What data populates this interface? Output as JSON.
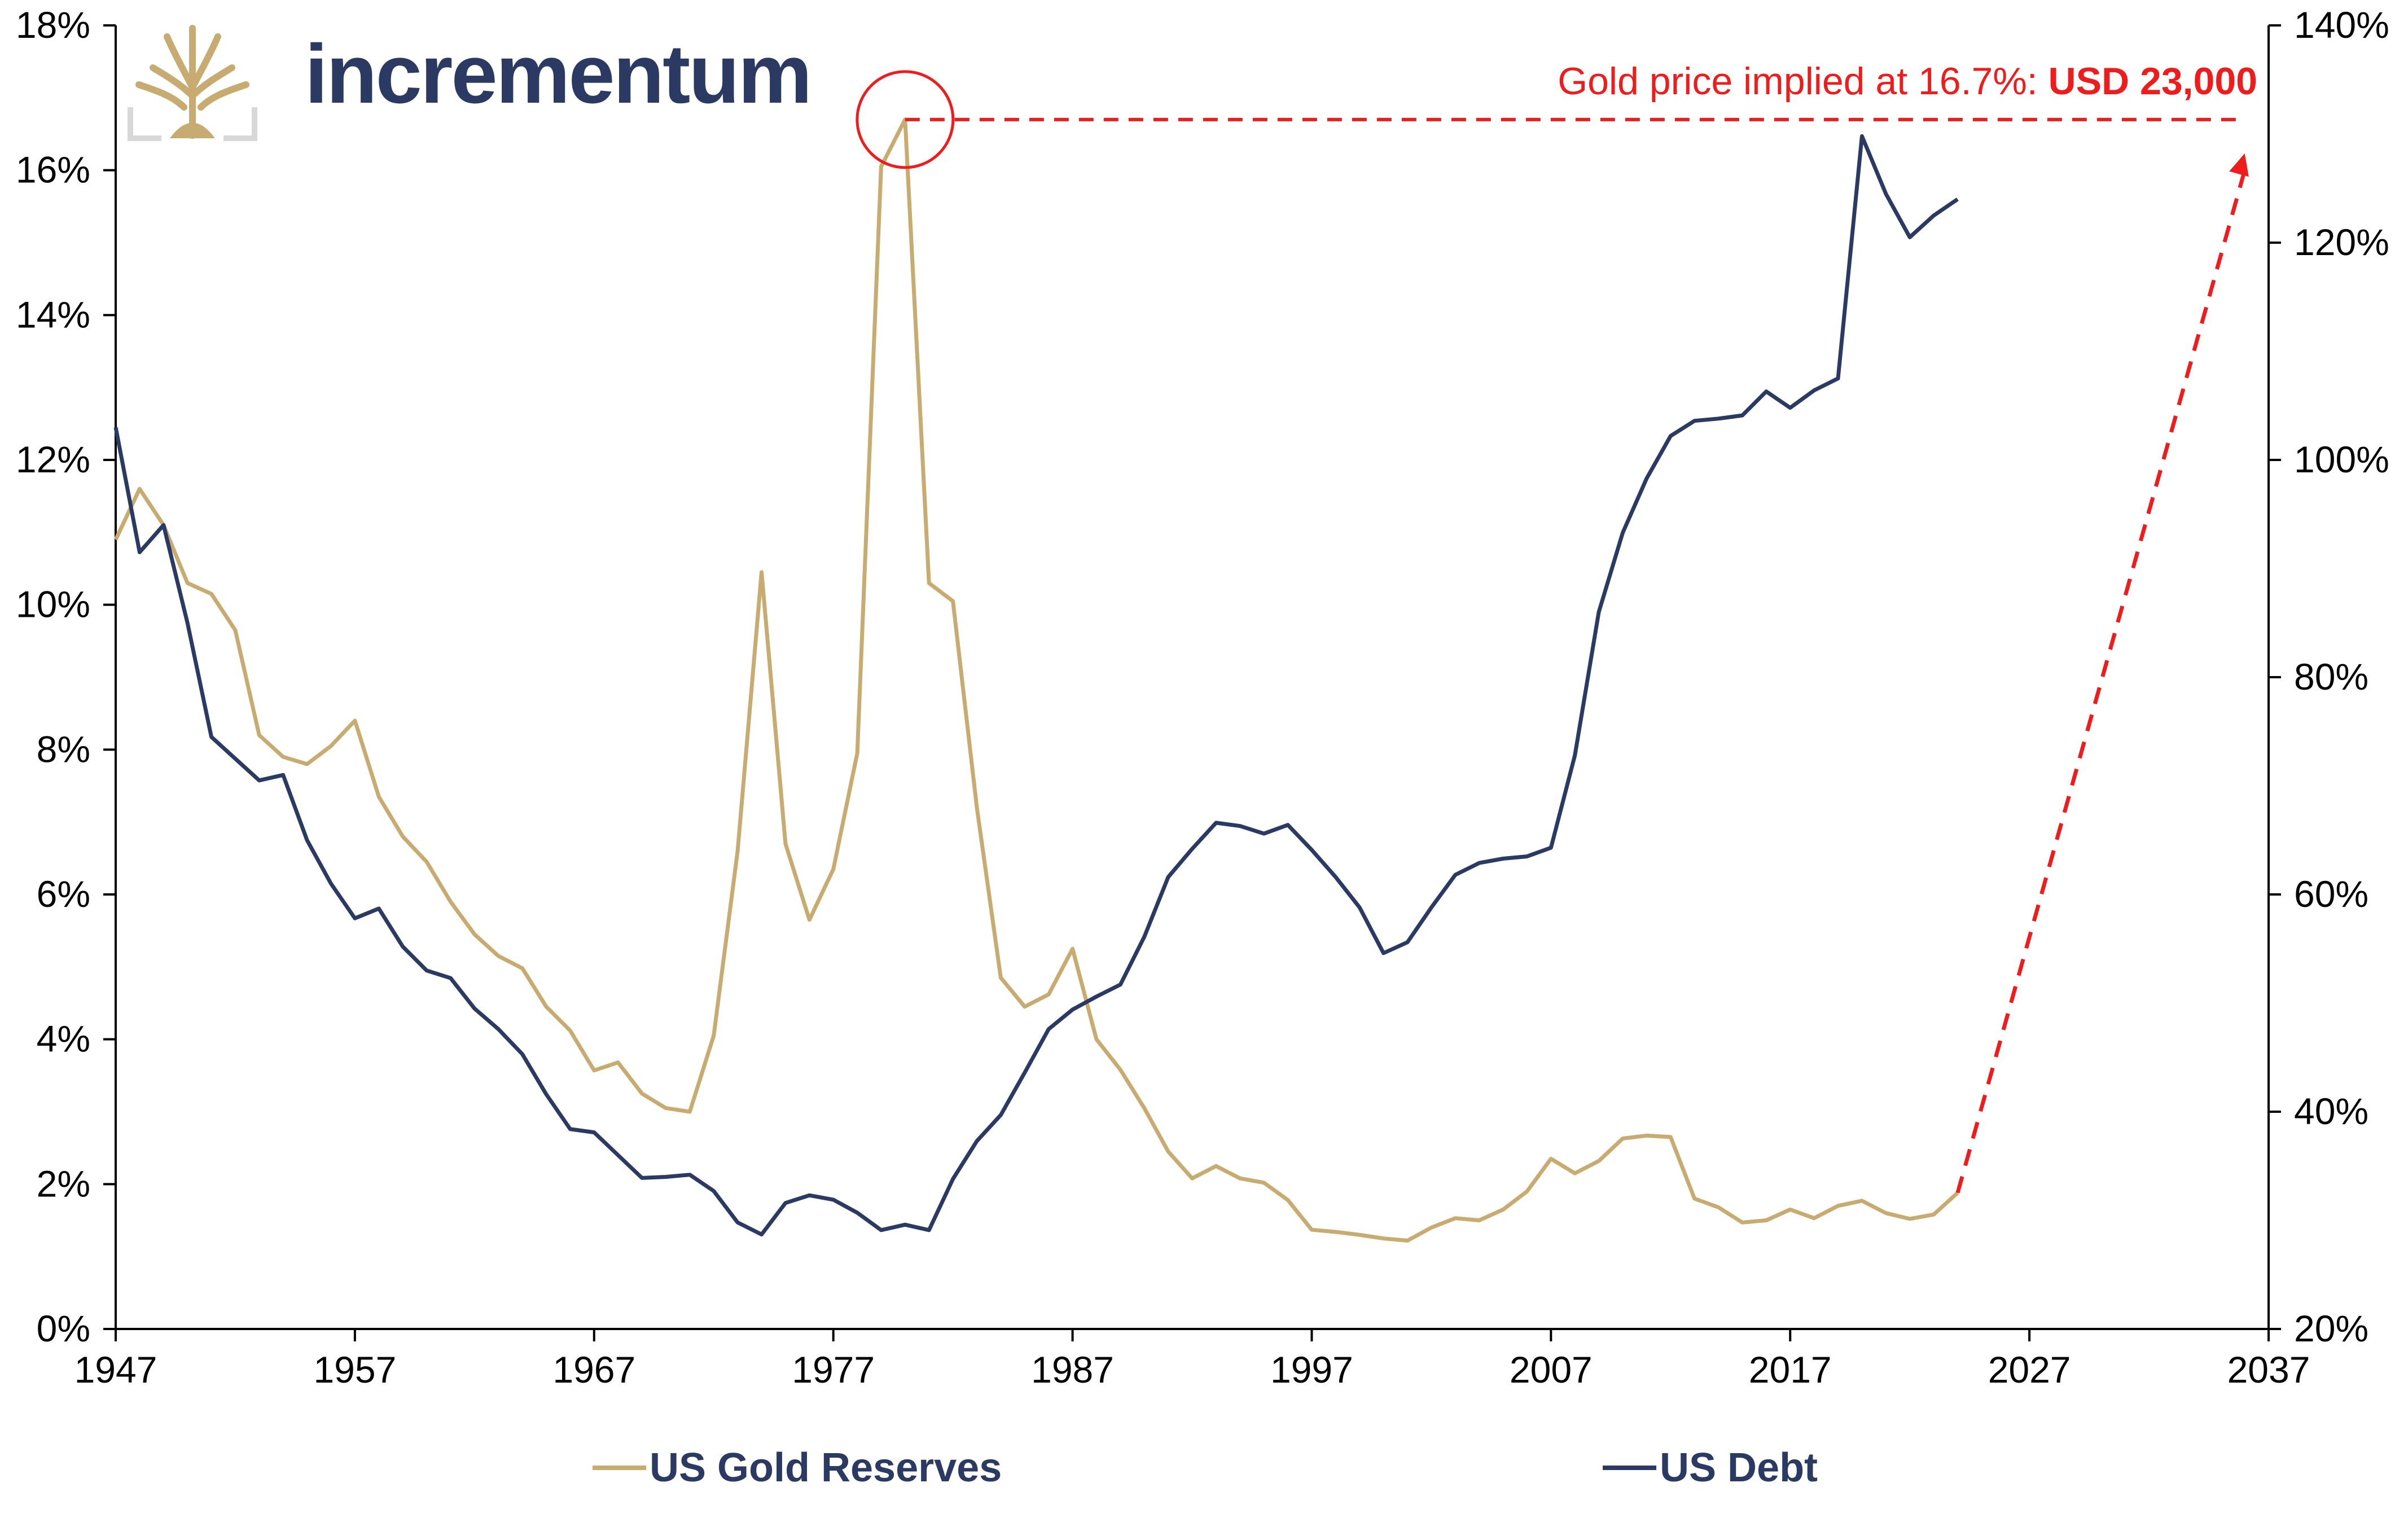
{
  "brand": {
    "name": "incrementum"
  },
  "annotation": {
    "text": "Gold price implied at 16.7%: ",
    "highlight": "USD 23,000",
    "color": "#ee1c1c"
  },
  "colors": {
    "gold": "#c7ab71",
    "debt": "#2b3a63",
    "accent": "#ee1c1c"
  },
  "chart_data": {
    "type": "line",
    "title": "",
    "xlabel": "",
    "ylabel_left": "",
    "ylabel_right": "",
    "x_ticks": [
      "1947",
      "1957",
      "1967",
      "1977",
      "1987",
      "1997",
      "2007",
      "2017",
      "2027",
      "2037"
    ],
    "x_range": [
      1947,
      2037
    ],
    "y_left_ticks": [
      "0%",
      "2%",
      "4%",
      "6%",
      "8%",
      "10%",
      "12%",
      "14%",
      "16%",
      "18%"
    ],
    "y_left_range": [
      0,
      18
    ],
    "y_right_ticks": [
      "20%",
      "40%",
      "60%",
      "80%",
      "100%",
      "120%",
      "140%"
    ],
    "y_right_range": [
      20,
      140
    ],
    "grid": false,
    "legend_position": "bottom",
    "series": [
      {
        "name": "US Gold Reserves",
        "axis": "left",
        "color": "#c7ab71",
        "x": [
          1947,
          1948,
          1949,
          1950,
          1951,
          1952,
          1953,
          1954,
          1955,
          1956,
          1957,
          1958,
          1959,
          1960,
          1961,
          1962,
          1963,
          1964,
          1965,
          1966,
          1967,
          1968,
          1969,
          1970,
          1971,
          1972,
          1973,
          1974,
          1975,
          1976,
          1977,
          1978,
          1979,
          1980,
          1981,
          1982,
          1983,
          1984,
          1985,
          1986,
          1987,
          1988,
          1989,
          1990,
          1991,
          1992,
          1993,
          1994,
          1995,
          1996,
          1997,
          1998,
          1999,
          2000,
          2001,
          2002,
          2003,
          2004,
          2005,
          2006,
          2007,
          2008,
          2009,
          2010,
          2011,
          2012,
          2013,
          2014,
          2015,
          2016,
          2017,
          2018,
          2019,
          2020,
          2021,
          2022,
          2023,
          2024
        ],
        "values": [
          10.9,
          11.6,
          11.1,
          10.3,
          10.15,
          9.65,
          8.2,
          7.9,
          7.8,
          8.05,
          8.4,
          7.35,
          6.8,
          6.45,
          5.9,
          5.45,
          5.15,
          4.98,
          4.45,
          4.12,
          3.57,
          3.68,
          3.25,
          3.05,
          3.0,
          4.05,
          6.6,
          10.45,
          6.7,
          5.65,
          6.35,
          7.95,
          16.05,
          16.7,
          10.3,
          10.05,
          7.2,
          4.85,
          4.45,
          4.62,
          5.25,
          4.0,
          3.58,
          3.05,
          2.45,
          2.08,
          2.25,
          2.08,
          2.02,
          1.78,
          1.37,
          1.34,
          1.3,
          1.25,
          1.22,
          1.4,
          1.53,
          1.5,
          1.65,
          1.9,
          2.35,
          2.15,
          2.32,
          2.63,
          2.67,
          2.65,
          1.8,
          1.68,
          1.47,
          1.5,
          1.65,
          1.53,
          1.7,
          1.77,
          1.6,
          1.52,
          1.58,
          1.88
        ]
      },
      {
        "name": "US Debt",
        "axis": "right",
        "color": "#2b3a63",
        "x": [
          1947,
          1948,
          1949,
          1950,
          1951,
          1952,
          1953,
          1954,
          1955,
          1956,
          1957,
          1958,
          1959,
          1960,
          1961,
          1962,
          1963,
          1964,
          1965,
          1966,
          1967,
          1968,
          1969,
          1970,
          1971,
          1972,
          1973,
          1974,
          1975,
          1976,
          1977,
          1978,
          1979,
          1980,
          1981,
          1982,
          1983,
          1984,
          1985,
          1986,
          1987,
          1988,
          1989,
          1990,
          1991,
          1992,
          1993,
          1994,
          1995,
          1996,
          1997,
          1998,
          1999,
          2000,
          2001,
          2002,
          2003,
          2004,
          2005,
          2006,
          2007,
          2008,
          2009,
          2010,
          2011,
          2012,
          2013,
          2014,
          2015,
          2016,
          2017,
          2018,
          2019,
          2020,
          2021,
          2022,
          2023,
          2024
        ],
        "values": [
          103,
          91.5,
          94,
          85,
          74.5,
          72.5,
          70.5,
          71,
          65,
          61,
          57.8,
          58.7,
          55.2,
          53,
          52.3,
          49.5,
          47.6,
          45.3,
          41.6,
          38.4,
          38.1,
          36,
          33.9,
          34,
          34.2,
          32.7,
          29.8,
          28.7,
          31.6,
          32.3,
          31.9,
          30.7,
          29.1,
          29.6,
          29.1,
          33.8,
          37.3,
          39.7,
          43.6,
          47.6,
          49.4,
          50.6,
          51.7,
          56.1,
          61.6,
          64.2,
          66.6,
          66.3,
          65.6,
          66.4,
          64.1,
          61.6,
          58.8,
          54.6,
          55.6,
          58.8,
          61.8,
          62.9,
          63.3,
          63.5,
          64.3,
          72.8,
          86,
          93.3,
          98.3,
          102.2,
          103.6,
          103.8,
          104.1,
          106.3,
          104.8,
          106.4,
          107.5,
          129.8,
          124.5,
          120.5,
          122.5,
          124
        ]
      }
    ],
    "projection": {
      "from": {
        "x": 2024,
        "y_left": 1.88
      },
      "to": {
        "x": 2036,
        "y_left": 16.7
      },
      "peak_marker": {
        "x": 1980,
        "y_left": 16.7
      },
      "level_line_y_left": 16.7
    }
  }
}
